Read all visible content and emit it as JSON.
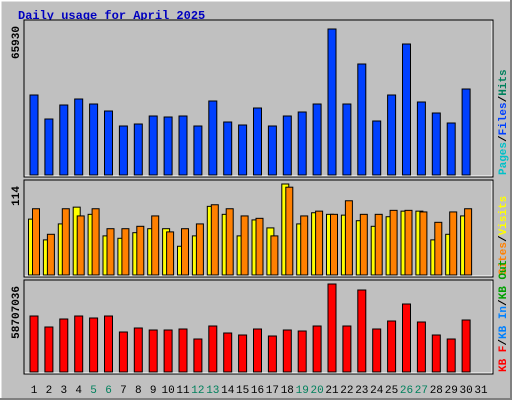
{
  "title": "Daily usage for April 2025",
  "legend_separator": "/",
  "chart_data": [
    {
      "type": "bar",
      "ylim": [
        0,
        65930
      ],
      "yticks": [
        65930
      ],
      "series": [
        {
          "name": "Pages",
          "color": "#00c0c8"
        },
        {
          "name": "Files",
          "color": "#0040ff",
          "values": [
            36126,
            25288,
            31610,
            34320,
            32062,
            28901,
            22127,
            23030,
            26643,
            26191,
            26643,
            22127,
            33416,
            23933,
            22579,
            30255,
            22127,
            26643,
            28449,
            32062,
            65930,
            32062,
            50125,
            24385,
            36126,
            59156,
            32965,
            27998,
            23482,
            38835,
            null
          ]
        },
        {
          "name": "Hits",
          "color": "#00805c"
        }
      ]
    },
    {
      "type": "bar",
      "ylim": [
        0,
        114
      ],
      "yticks": [
        114
      ],
      "series": [
        {
          "name": "Sites",
          "color": "#ff8000",
          "values": [
            83,
            51,
            83,
            74,
            83,
            58,
            58,
            61,
            74,
            54,
            58,
            64,
            88,
            83,
            74,
            71,
            49,
            110,
            74,
            80,
            76,
            93,
            76,
            76,
            81,
            81,
            79,
            66,
            79,
            83,
            null
          ]
        },
        {
          "name": "Visits",
          "color": "#ffff00",
          "values": [
            70,
            44,
            64,
            85,
            76,
            49,
            46,
            53,
            58,
            58,
            36,
            49,
            86,
            76,
            49,
            69,
            59,
            114,
            64,
            78,
            76,
            75,
            68,
            61,
            73,
            80,
            80,
            44,
            51,
            74,
            null
          ]
        }
      ]
    },
    {
      "type": "bar",
      "ylim": [
        0,
        58707036
      ],
      "yticks": [
        58707036
      ],
      "categories": [
        "1",
        "2",
        "3",
        "4",
        "5",
        "6",
        "7",
        "8",
        "9",
        "10",
        "11",
        "12",
        "13",
        "14",
        "15",
        "16",
        "17",
        "18",
        "19",
        "20",
        "21",
        "22",
        "23",
        "24",
        "25",
        "26",
        "27",
        "28",
        "29",
        "30",
        "31"
      ],
      "weekends": [
        4,
        5,
        11,
        12,
        18,
        19,
        25,
        26
      ],
      "weekend_color": "#00805c",
      "series": [
        {
          "name": "KB F",
          "color": "#ff0000",
          "values": [
            37359022,
            30020643,
            35357646,
            37359022,
            36024772,
            37359022,
            26685016,
            29353518,
            28019267,
            28019267,
            28686392,
            22015138,
            30687768,
            26017891,
            24683640,
            28686392,
            24016514,
            28019267,
            27352142,
            30687768,
            58707036,
            30687768,
            54704283,
            28686392,
            34023395,
            45364527,
            33356270,
            24683640,
            22015138,
            34690521,
            null
          ]
        },
        {
          "name": "KB In",
          "color": "#0080ff"
        },
        {
          "name": "KB Out",
          "color": "#00a000"
        }
      ]
    }
  ]
}
